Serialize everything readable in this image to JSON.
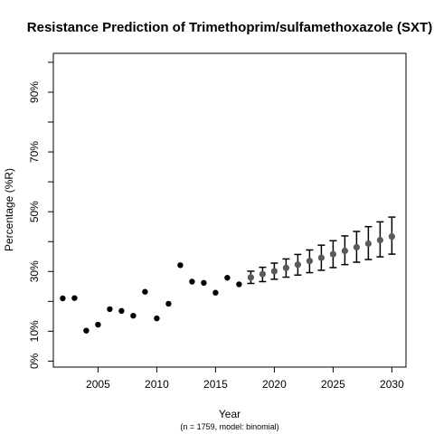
{
  "chart_data": {
    "type": "scatter",
    "title": "Resistance Prediction of Trimethoprim/sulfamethoxazole (SXT)",
    "xlabel": "Year",
    "ylabel": "Percentage (%R)",
    "note": "(n = 1759, model: binomial)",
    "xlim": [
      2001.2,
      2031.2
    ],
    "ylim": [
      -2,
      103
    ],
    "x_ticks": [
      2005,
      2010,
      2015,
      2020,
      2025,
      2030
    ],
    "x_tick_labels": [
      "2005",
      "2010",
      "2015",
      "2020",
      "2025",
      "2030"
    ],
    "y_ticks": [
      0,
      10,
      30,
      50,
      70,
      90
    ],
    "y_tick_labels": [
      "0%",
      "10%",
      "30%",
      "50%",
      "70%",
      "90%"
    ],
    "y_minor_ticks": [
      20,
      40,
      60,
      80,
      100
    ],
    "grid": false,
    "colors": {
      "observed": "#000000",
      "predicted": "#5a5a5a",
      "error_bar": "#000000"
    },
    "series": [
      {
        "kind": "observed",
        "x": [
          2002,
          2003,
          2004,
          2005,
          2006,
          2007,
          2008,
          2009,
          2010,
          2011,
          2012,
          2013,
          2014,
          2015,
          2016,
          2017
        ],
        "y": [
          21.0,
          21.1,
          10.2,
          12.2,
          17.4,
          16.8,
          15.2,
          23.2,
          14.3,
          19.2,
          32.1,
          26.6,
          26.2,
          22.9,
          27.9,
          25.7
        ]
      },
      {
        "kind": "predicted",
        "x": [
          2018,
          2019,
          2020,
          2021,
          2022,
          2023,
          2024,
          2025,
          2026,
          2027,
          2028,
          2029,
          2030
        ],
        "y": [
          28.0,
          29.1,
          30.1,
          31.2,
          32.3,
          33.5,
          34.6,
          35.8,
          36.9,
          38.1,
          39.3,
          40.5,
          41.7
        ],
        "lower": [
          26.0,
          26.6,
          27.4,
          28.1,
          28.8,
          29.6,
          30.4,
          31.3,
          32.3,
          33.1,
          34.0,
          34.9,
          35.8
        ],
        "upper": [
          30.1,
          31.4,
          32.8,
          34.2,
          35.7,
          37.2,
          38.8,
          40.3,
          41.9,
          43.4,
          45.0,
          46.6,
          48.2
        ]
      }
    ]
  }
}
